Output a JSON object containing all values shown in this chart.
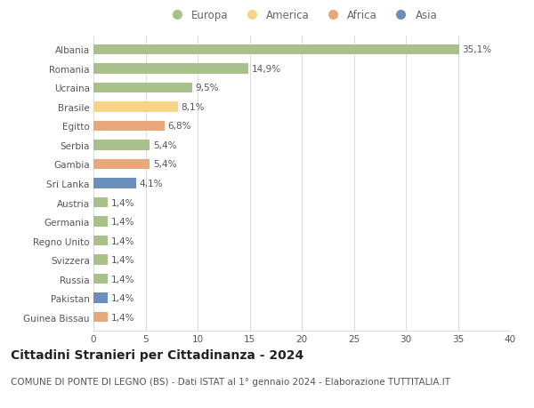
{
  "countries": [
    "Albania",
    "Romania",
    "Ucraina",
    "Brasile",
    "Egitto",
    "Serbia",
    "Gambia",
    "Sri Lanka",
    "Austria",
    "Germania",
    "Regno Unito",
    "Svizzera",
    "Russia",
    "Pakistan",
    "Guinea Bissau"
  ],
  "values": [
    35.1,
    14.9,
    9.5,
    8.1,
    6.8,
    5.4,
    5.4,
    4.1,
    1.4,
    1.4,
    1.4,
    1.4,
    1.4,
    1.4,
    1.4
  ],
  "labels": [
    "35,1%",
    "14,9%",
    "9,5%",
    "8,1%",
    "6,8%",
    "5,4%",
    "5,4%",
    "4,1%",
    "1,4%",
    "1,4%",
    "1,4%",
    "1,4%",
    "1,4%",
    "1,4%",
    "1,4%"
  ],
  "continents": [
    "Europa",
    "Europa",
    "Europa",
    "America",
    "Africa",
    "Europa",
    "Africa",
    "Asia",
    "Europa",
    "Europa",
    "Europa",
    "Europa",
    "Europa",
    "Asia",
    "Africa"
  ],
  "continent_colors": {
    "Europa": "#a8c08a",
    "America": "#f5d48a",
    "Africa": "#e8a87c",
    "Asia": "#6b8fbd"
  },
  "legend_order": [
    "Europa",
    "America",
    "Africa",
    "Asia"
  ],
  "xlim": [
    0,
    40
  ],
  "xticks": [
    0,
    5,
    10,
    15,
    20,
    25,
    30,
    35,
    40
  ],
  "title": "Cittadini Stranieri per Cittadinanza - 2024",
  "subtitle": "COMUNE DI PONTE DI LEGNO (BS) - Dati ISTAT al 1° gennaio 2024 - Elaborazione TUTTITALIA.IT",
  "bg_color": "#ffffff",
  "grid_color": "#dddddd",
  "bar_height": 0.55,
  "title_fontsize": 10,
  "subtitle_fontsize": 7.5,
  "label_fontsize": 7.5,
  "tick_fontsize": 7.5,
  "legend_fontsize": 8.5
}
